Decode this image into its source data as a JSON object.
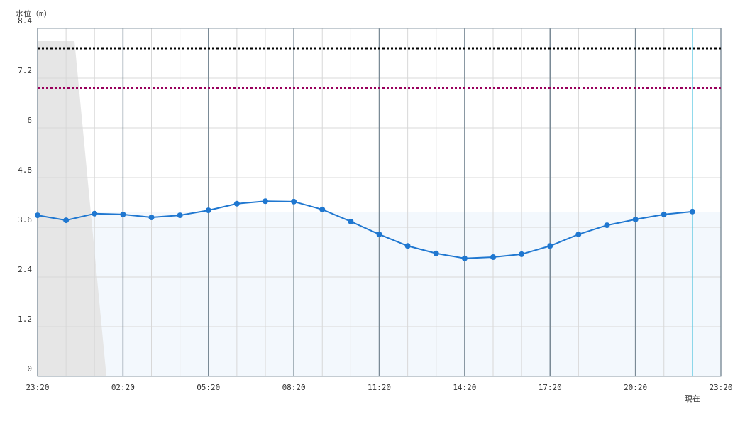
{
  "chart_data": {
    "type": "line",
    "y_label": "水位（m）",
    "categories": [
      "23:20",
      null,
      null,
      "02:20",
      null,
      null,
      "05:20",
      null,
      null,
      "08:20",
      null,
      null,
      "11:20",
      null,
      null,
      "14:20",
      null,
      null,
      "17:20",
      null,
      null,
      "20:20",
      null,
      null,
      "23:20"
    ],
    "series": [
      {
        "color": "#1f77d0",
        "values": [
          3.89,
          3.77,
          3.93,
          3.91,
          3.84,
          3.89,
          4.01,
          4.17,
          4.23,
          4.22,
          4.03,
          3.74,
          3.43,
          3.15,
          2.97,
          2.85,
          2.88,
          2.95,
          3.15,
          3.43,
          3.65,
          3.79,
          3.91,
          3.98,
          null
        ]
      }
    ],
    "thresholds": [
      {
        "value": 7.92,
        "color": "#000000"
      },
      {
        "value": 6.96,
        "color": "#99005c"
      }
    ],
    "annotations": [
      {
        "text": "現在",
        "index": 23,
        "color": "#4fc3e0"
      }
    ],
    "ylim": [
      0,
      8.4
    ],
    "yticks": [
      0,
      1.2,
      2.4,
      3.6,
      4.8,
      6,
      7.2,
      8.4
    ],
    "grid": true
  }
}
